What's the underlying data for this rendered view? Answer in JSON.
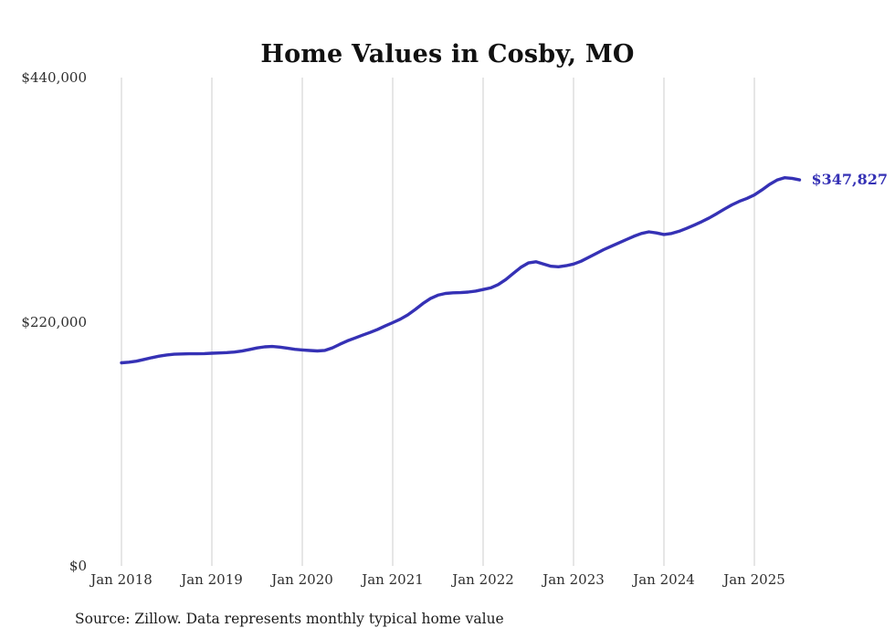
{
  "page": {
    "title": "Home Values in Cosby, MO",
    "source_note": "Source: Zillow. Data represents monthly typical home value"
  },
  "chart_data": {
    "type": "line",
    "title": "Home Values in Cosby, MO",
    "series_name": "Typical home value",
    "x_start": "Jan 2018",
    "x_end": "Jul 2025",
    "x_interval": "monthly",
    "x_ticks": [
      "Jan 2018",
      "Jan 2019",
      "Jan 2020",
      "Jan 2021",
      "Jan 2022",
      "Jan 2023",
      "Jan 2024",
      "Jan 2025"
    ],
    "y_ticks": [
      {
        "label": "$0",
        "value": 0
      },
      {
        "label": "$220,000",
        "value": 220000
      },
      {
        "label": "$440,000",
        "value": 440000
      }
    ],
    "ylim": [
      0,
      440000
    ],
    "grid": "vertical-at-year-ticks",
    "legend": "none",
    "line_color": "#3531b5",
    "grid_color": "#cccccc",
    "end_label": "$347,827",
    "final_value": 347827,
    "values": [
      183000,
      183600,
      184500,
      186000,
      187600,
      189000,
      190100,
      190700,
      191000,
      191100,
      191100,
      191300,
      191600,
      191900,
      192200,
      192700,
      193600,
      195000,
      196400,
      197400,
      197700,
      197100,
      196200,
      195200,
      194600,
      194100,
      193700,
      194200,
      196500,
      199800,
      202800,
      205400,
      207900,
      210400,
      213100,
      216200,
      219200,
      222300,
      226200,
      231100,
      236400,
      240900,
      243900,
      245500,
      246100,
      246200,
      246700,
      247600,
      249000,
      250500,
      253500,
      258000,
      263500,
      269000,
      273000,
      274000,
      272000,
      270000,
      269500,
      270500,
      272000,
      274500,
      278000,
      281500,
      285000,
      288000,
      291000,
      294000,
      297000,
      299500,
      301000,
      300000,
      298600,
      299500,
      301500,
      304100,
      307000,
      310100,
      313500,
      317400,
      321400,
      325300,
      328500,
      331100,
      334200,
      338800,
      343700,
      347600,
      349800,
      349200,
      347827
    ]
  }
}
